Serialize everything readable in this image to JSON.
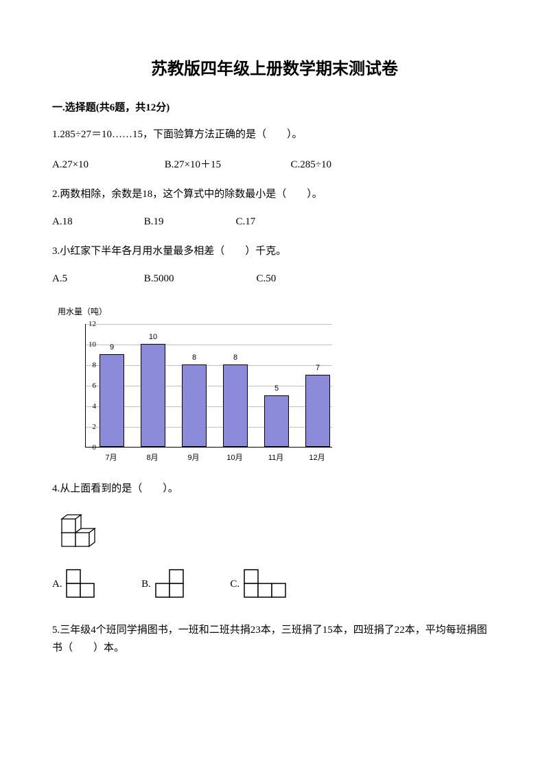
{
  "title": "苏教版四年级上册数学期末测试卷",
  "section1": {
    "header": "一.选择题(共6题，共12分)"
  },
  "q1": {
    "text": "1.285÷27＝10……15，下面验算方法正确的是（　　）。",
    "optA": "A.27×10",
    "optB": "B.27×10＋15",
    "optC": "C.285÷10"
  },
  "q2": {
    "text": "2.两数相除，余数是18，这个算式中的除数最小是（　　）。",
    "optA": "A.18",
    "optB": "B.19",
    "optC": "C.17"
  },
  "q3": {
    "text": "3.小红家下半年各月用水量最多相差（　　）千克。",
    "optA": "A.5",
    "optB": "B.5000",
    "optC": "C.50"
  },
  "chart": {
    "type": "bar",
    "ylabel": "用水量（吨）",
    "categories": [
      "7月",
      "8月",
      "9月",
      "10月",
      "11月",
      "12月"
    ],
    "values": [
      9,
      10,
      8,
      8,
      5,
      7
    ],
    "yticks": [
      0,
      2,
      4,
      6,
      8,
      10,
      12
    ],
    "ymax": 12,
    "bar_color": "#8b8bd9",
    "grid_color": "#c0c0c0",
    "plot_bg": "#ffffff"
  },
  "q4": {
    "text": "4.从上面看到的是（　　）。",
    "optA": "A.",
    "optB": "B.",
    "optC": "C."
  },
  "q5": {
    "text": "5.三年级4个班同学捐图书，一班和二班共捐23本，三班捐了15本，四班捐了22本，平均每班捐图书（　　）本。"
  }
}
